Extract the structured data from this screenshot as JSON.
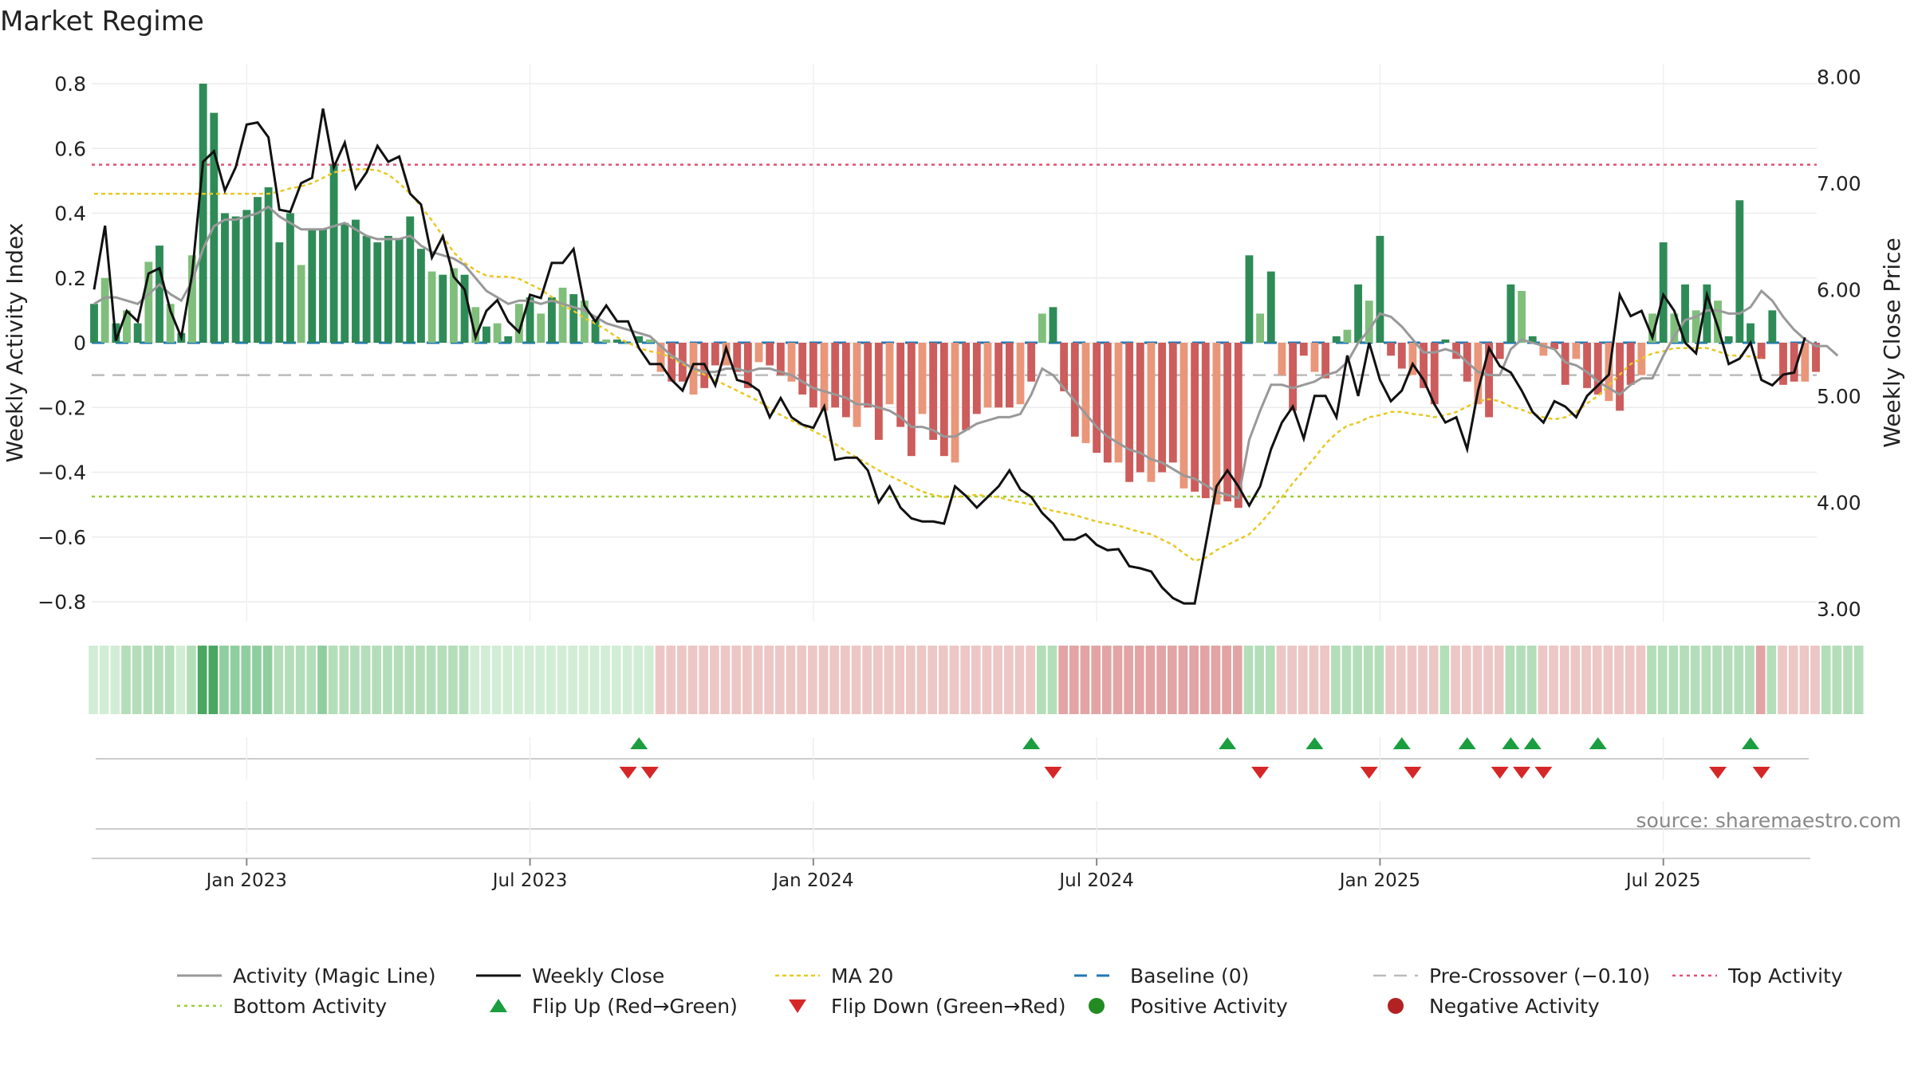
{
  "chart_data": {
    "type": "bar",
    "title": "Market Regime",
    "ylabel": "Weekly Activity Index",
    "ylabel_right": "Weekly Close Price",
    "source": "source: sharemaestro.com",
    "ylim": [
      -0.84,
      0.84
    ],
    "ylim_right": [
      2.85,
      8.02
    ],
    "yticks": [
      {
        "v": 0.8,
        "label": "0.8"
      },
      {
        "v": 0.6,
        "label": "0.6"
      },
      {
        "v": 0.4,
        "label": "0.4"
      },
      {
        "v": 0.2,
        "label": "0.2"
      },
      {
        "v": 0,
        "label": "0"
      },
      {
        "v": -0.2,
        "label": "−0.2"
      },
      {
        "v": -0.4,
        "label": "−0.4"
      },
      {
        "v": -0.6,
        "label": "−0.6"
      },
      {
        "v": -0.8,
        "label": "−0.8"
      }
    ],
    "yticks_right": [
      {
        "v": 8,
        "label": "8.00"
      },
      {
        "v": 7,
        "label": "7.00"
      },
      {
        "v": 6,
        "label": "6.00"
      },
      {
        "v": 5,
        "label": "5.00"
      },
      {
        "v": 4,
        "label": "4.00"
      },
      {
        "v": 3,
        "label": "3.00"
      }
    ],
    "xticks": [
      {
        "week": 14,
        "label": "Jan 2023"
      },
      {
        "week": 40,
        "label": "Jul 2023"
      },
      {
        "week": 66,
        "label": "Jan 2024"
      },
      {
        "week": 92,
        "label": "Jul 2024"
      },
      {
        "week": 118,
        "label": "Jan 2025"
      },
      {
        "week": 144,
        "label": "Jul 2025"
      }
    ],
    "reference_lines": {
      "top_activity": 0.55,
      "bottom_activity": -0.475,
      "pre_crossover": -0.1,
      "baseline": 0
    },
    "activity": [
      0.12,
      0.2,
      0.06,
      0.1,
      0.06,
      0.25,
      0.3,
      0.12,
      0.03,
      0.27,
      0.8,
      0.71,
      0.4,
      0.39,
      0.41,
      0.45,
      0.48,
      0.31,
      0.4,
      0.24,
      0.35,
      0.35,
      0.55,
      0.37,
      0.38,
      0.33,
      0.31,
      0.33,
      0.32,
      0.39,
      0.29,
      0.22,
      0.21,
      0.23,
      0.21,
      0.11,
      0.05,
      0.06,
      0.02,
      0.12,
      0.14,
      0.09,
      0.14,
      0.17,
      0.15,
      0.13,
      0.07,
      0.01,
      0.01,
      0.0,
      0.02,
      0.01,
      -0.09,
      -0.12,
      -0.12,
      -0.16,
      -0.14,
      -0.07,
      -0.07,
      -0.09,
      -0.14,
      -0.06,
      -0.07,
      -0.1,
      -0.12,
      -0.16,
      -0.2,
      -0.21,
      -0.2,
      -0.23,
      -0.26,
      -0.2,
      -0.3,
      -0.19,
      -0.26,
      -0.35,
      -0.22,
      -0.3,
      -0.35,
      -0.37,
      -0.27,
      -0.22,
      -0.2,
      -0.2,
      -0.2,
      -0.19,
      -0.12,
      0.09,
      0.11,
      -0.15,
      -0.29,
      -0.31,
      -0.34,
      -0.37,
      -0.37,
      -0.43,
      -0.4,
      -0.43,
      -0.4,
      -0.37,
      -0.45,
      -0.46,
      -0.48,
      -0.5,
      -0.49,
      -0.51,
      0.27,
      0.09,
      0.22,
      -0.1,
      -0.21,
      -0.04,
      -0.09,
      -0.11,
      0.02,
      0.04,
      0.18,
      0.13,
      0.33,
      -0.04,
      -0.08,
      -0.1,
      -0.14,
      -0.19,
      0.01,
      -0.05,
      -0.12,
      -0.19,
      -0.23,
      -0.05,
      0.18,
      0.16,
      0.02,
      -0.04,
      -0.02,
      -0.13,
      -0.05,
      -0.14,
      -0.16,
      -0.18,
      -0.21,
      -0.13,
      -0.1,
      0.09,
      0.31,
      0.09,
      0.18,
      0.1,
      0.18,
      0.13,
      0.02,
      0.44,
      0.06,
      -0.05,
      0.1,
      -0.13,
      -0.12,
      -0.12,
      -0.09
    ],
    "magic_line": [
      0.12,
      0.14,
      0.14,
      0.13,
      0.12,
      0.15,
      0.18,
      0.15,
      0.13,
      0.19,
      0.29,
      0.36,
      0.38,
      0.38,
      0.39,
      0.4,
      0.42,
      0.39,
      0.37,
      0.35,
      0.35,
      0.35,
      0.36,
      0.37,
      0.35,
      0.33,
      0.32,
      0.32,
      0.32,
      0.33,
      0.3,
      0.28,
      0.27,
      0.26,
      0.24,
      0.2,
      0.16,
      0.14,
      0.12,
      0.13,
      0.13,
      0.12,
      0.13,
      0.12,
      0.11,
      0.1,
      0.08,
      0.06,
      0.05,
      0.04,
      0.03,
      0.02,
      -0.01,
      -0.04,
      -0.06,
      -0.08,
      -0.09,
      -0.09,
      -0.08,
      -0.08,
      -0.09,
      -0.08,
      -0.08,
      -0.09,
      -0.1,
      -0.12,
      -0.14,
      -0.15,
      -0.16,
      -0.17,
      -0.19,
      -0.19,
      -0.2,
      -0.21,
      -0.23,
      -0.26,
      -0.26,
      -0.27,
      -0.29,
      -0.29,
      -0.27,
      -0.25,
      -0.24,
      -0.23,
      -0.23,
      -0.22,
      -0.16,
      -0.08,
      -0.1,
      -0.14,
      -0.18,
      -0.22,
      -0.26,
      -0.29,
      -0.31,
      -0.33,
      -0.34,
      -0.36,
      -0.37,
      -0.39,
      -0.41,
      -0.42,
      -0.44,
      -0.46,
      -0.47,
      -0.48,
      -0.3,
      -0.21,
      -0.13,
      -0.13,
      -0.14,
      -0.13,
      -0.12,
      -0.1,
      -0.09,
      -0.06,
      0.0,
      0.04,
      0.09,
      0.08,
      0.05,
      0.01,
      -0.03,
      -0.03,
      -0.02,
      -0.03,
      -0.06,
      -0.09,
      -0.1,
      -0.1,
      -0.02,
      0.01,
      0.0,
      -0.01,
      -0.02,
      -0.06,
      -0.07,
      -0.09,
      -0.12,
      -0.14,
      -0.16,
      -0.13,
      -0.11,
      -0.11,
      -0.04,
      0.02,
      0.07,
      0.08,
      0.1,
      0.1,
      0.09,
      0.09,
      0.11,
      0.16,
      0.13,
      0.08,
      0.04,
      0.01,
      -0.01,
      -0.01,
      -0.04
    ],
    "weekly_close": [
      6.0,
      6.6,
      5.52,
      5.8,
      5.7,
      6.15,
      6.2,
      5.8,
      5.55,
      6.15,
      7.2,
      7.3,
      6.93,
      7.15,
      7.55,
      7.57,
      7.43,
      6.75,
      6.73,
      7.0,
      7.05,
      7.7,
      7.15,
      7.38,
      6.95,
      7.1,
      7.35,
      7.2,
      7.25,
      6.9,
      6.8,
      6.3,
      6.5,
      6.12,
      6.0,
      5.55,
      5.8,
      5.9,
      5.7,
      5.6,
      5.95,
      5.92,
      6.25,
      6.25,
      6.38,
      5.85,
      5.7,
      5.85,
      5.7,
      5.7,
      5.45,
      5.3,
      5.3,
      5.15,
      5.05,
      5.3,
      5.3,
      5.1,
      5.45,
      5.15,
      5.12,
      5.05,
      4.8,
      4.98,
      4.8,
      4.73,
      4.7,
      4.9,
      4.4,
      4.42,
      4.42,
      4.3,
      4.0,
      4.15,
      3.95,
      3.85,
      3.82,
      3.82,
      3.8,
      4.15,
      4.06,
      3.95,
      4.05,
      4.15,
      4.3,
      4.12,
      4.05,
      3.9,
      3.8,
      3.65,
      3.65,
      3.7,
      3.6,
      3.55,
      3.56,
      3.4,
      3.38,
      3.35,
      3.2,
      3.1,
      3.05,
      3.05,
      3.6,
      4.15,
      4.3,
      4.15,
      3.97,
      4.15,
      4.5,
      4.75,
      4.9,
      4.6,
      5.0,
      5.0,
      4.8,
      5.38,
      5.0,
      5.5,
      5.15,
      4.95,
      5.05,
      5.3,
      5.15,
      4.92,
      4.75,
      4.8,
      4.5,
      5.05,
      5.45,
      5.28,
      5.22,
      5.05,
      4.85,
      4.75,
      4.95,
      4.9,
      4.8,
      5.0,
      5.1,
      5.2,
      5.95,
      5.75,
      5.8,
      5.55,
      5.95,
      5.8,
      5.5,
      5.4,
      5.95,
      5.65,
      5.3,
      5.35,
      5.5,
      5.15,
      5.1,
      5.2,
      5.22,
      5.55
    ],
    "ma20": [
      6.9,
      6.9,
      6.9,
      6.9,
      6.9,
      6.9,
      6.9,
      6.9,
      6.9,
      6.9,
      6.9,
      6.9,
      6.9,
      6.9,
      6.9,
      6.9,
      6.9,
      6.92,
      6.95,
      6.97,
      7.0,
      7.05,
      7.1,
      7.12,
      7.13,
      7.13,
      7.12,
      7.08,
      7.0,
      6.9,
      6.78,
      6.65,
      6.5,
      6.35,
      6.25,
      6.18,
      6.13,
      6.12,
      6.12,
      6.1,
      6.05,
      6.0,
      5.93,
      5.85,
      5.8,
      5.73,
      5.68,
      5.62,
      5.55,
      5.5,
      5.45,
      5.42,
      5.4,
      5.36,
      5.3,
      5.25,
      5.2,
      5.15,
      5.1,
      5.05,
      5.0,
      4.95,
      4.88,
      4.82,
      4.77,
      4.72,
      4.67,
      4.62,
      4.55,
      4.48,
      4.42,
      4.36,
      4.3,
      4.25,
      4.2,
      4.15,
      4.1,
      4.07,
      4.05,
      4.05,
      4.06,
      4.07,
      4.06,
      4.05,
      4.02,
      4.0,
      3.98,
      3.95,
      3.92,
      3.9,
      3.88,
      3.85,
      3.82,
      3.8,
      3.78,
      3.75,
      3.72,
      3.7,
      3.65,
      3.6,
      3.52,
      3.45,
      3.48,
      3.55,
      3.6,
      3.65,
      3.7,
      3.8,
      3.92,
      4.05,
      4.18,
      4.3,
      4.42,
      4.55,
      4.65,
      4.72,
      4.75,
      4.8,
      4.82,
      4.85,
      4.85,
      4.83,
      4.82,
      4.8,
      4.82,
      4.85,
      4.9,
      4.95,
      4.97,
      4.95,
      4.9,
      4.87,
      4.83,
      4.8,
      4.78,
      4.8,
      4.85,
      4.93,
      5.0,
      5.1,
      5.2,
      5.3,
      5.35,
      5.4,
      5.42,
      5.45,
      5.45,
      5.45,
      5.45,
      5.42,
      5.38,
      5.38,
      5.37,
      5.36
    ],
    "strip_shade": [
      3,
      3,
      3,
      2,
      2,
      2,
      2,
      2,
      3,
      2,
      0,
      0,
      1,
      1,
      1,
      1,
      1,
      2,
      2,
      2,
      2,
      1,
      2,
      2,
      2,
      2,
      2,
      2,
      2,
      2,
      2,
      2,
      2,
      2,
      2,
      3,
      3,
      3,
      3,
      3,
      3,
      3,
      3,
      3,
      3,
      3,
      3,
      3,
      3,
      3,
      3,
      3,
      2,
      2,
      2,
      2,
      2,
      2,
      2,
      2,
      2,
      2,
      2,
      2,
      2,
      2,
      2,
      2,
      2,
      2,
      2,
      2,
      2,
      2,
      2,
      2,
      2,
      2,
      2,
      2,
      2,
      2,
      2,
      2,
      2,
      2,
      2,
      2,
      2,
      1,
      1,
      1,
      1,
      1,
      1,
      1,
      1,
      1,
      1,
      1,
      1,
      1,
      1,
      1,
      1,
      1,
      2,
      2,
      2,
      2,
      2,
      2,
      2,
      2,
      2,
      2,
      2,
      2,
      2,
      2,
      2,
      2,
      2,
      2,
      2,
      2,
      2,
      2,
      2,
      2,
      2,
      2,
      2,
      2,
      2,
      2,
      2,
      2,
      2,
      2,
      2,
      2,
      2,
      2,
      2,
      2,
      2,
      2,
      2,
      2,
      2,
      2,
      2,
      1,
      2,
      2,
      2,
      2,
      2,
      2,
      2,
      2,
      2
    ],
    "flip_up_weeks": [
      50,
      86,
      104,
      112,
      120,
      126,
      130,
      132,
      138,
      152
    ],
    "flip_down_weeks": [
      49,
      51,
      88,
      107,
      117,
      121,
      129,
      131,
      133,
      149,
      153
    ],
    "legend": [
      {
        "key": "magic",
        "label": "Activity (Magic Line)"
      },
      {
        "key": "close",
        "label": "Weekly Close"
      },
      {
        "key": "ma20",
        "label": "MA 20"
      },
      {
        "key": "baseline",
        "label": "Baseline (0)"
      },
      {
        "key": "precross",
        "label": "Pre-Crossover (−0.10)"
      },
      {
        "key": "top",
        "label": "Top Activity"
      },
      {
        "key": "bottom",
        "label": "Bottom Activity"
      },
      {
        "key": "flipup",
        "label": "Flip Up (Red→Green)"
      },
      {
        "key": "flipdown",
        "label": "Flip Down (Green→Red)"
      },
      {
        "key": "pos",
        "label": "Positive Activity"
      },
      {
        "key": "neg",
        "label": "Negative Activity"
      }
    ],
    "colors": {
      "pos_dark": "#2e8b57",
      "pos_light": "#7fbf7b",
      "neg_dark": "#cd5c5c",
      "neg_light": "#e9967a",
      "magic": "#999999",
      "close": "#111111",
      "ma20": "#e8c822",
      "baseline": "#1f77b4",
      "precross": "#bbbbbb",
      "top": "#e05070",
      "bottom": "#9acd32",
      "flip_up": "#1a9e3f",
      "flip_down": "#d62728",
      "pos_dot": "#228b22",
      "neg_dot": "#b22222",
      "strip_green": [
        "#4aa761",
        "#8fce9f",
        "#b4deb9",
        "#d2edd5"
      ],
      "strip_red": [
        "#d87d7d",
        "#e2a4a4",
        "#ecc7c5",
        "#f2dad8"
      ]
    }
  }
}
